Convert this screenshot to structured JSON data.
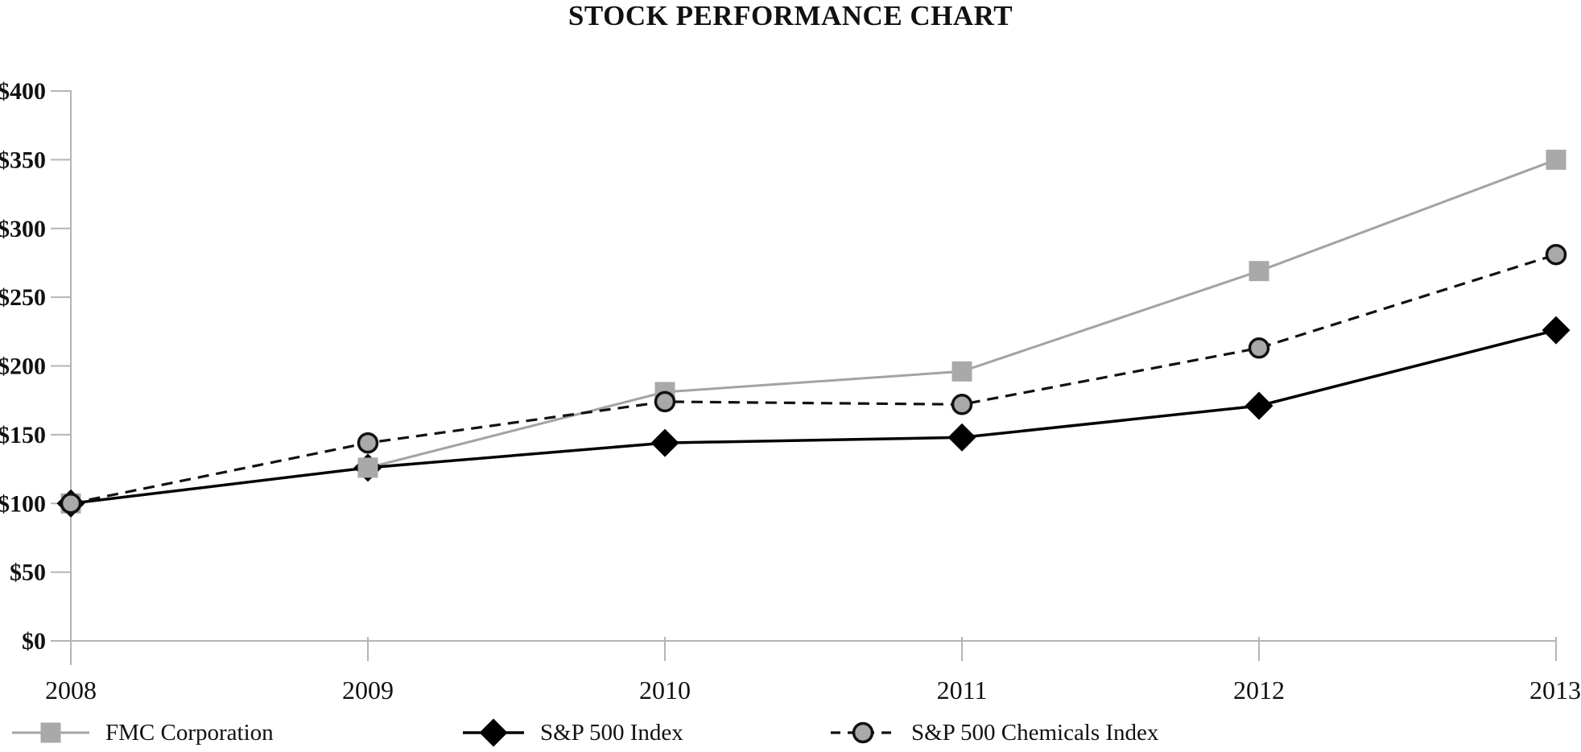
{
  "title": "STOCK PERFORMANCE CHART",
  "chart_data": {
    "type": "line",
    "title": "STOCK PERFORMANCE CHART",
    "categories": [
      "2008",
      "2009",
      "2010",
      "2011",
      "2012",
      "2013"
    ],
    "y_tick_labels": [
      "$400",
      "$350",
      "$300",
      "$250",
      "$200",
      "$150",
      "$100",
      "$50",
      "$0"
    ],
    "ylim": [
      0,
      400
    ],
    "y_tick_step": 50,
    "grid": "off",
    "legend_position": "bottom",
    "axis_color": "#b5b5b5",
    "text_color": "#111111",
    "series": [
      {
        "name": "FMC Corporation",
        "marker": "square",
        "line_style": "solid",
        "line_color": "#a3a3a3",
        "line_width": 3,
        "marker_fill": "#a9a9a9",
        "marker_stroke": "none",
        "z": 2,
        "values": [
          100,
          126,
          181,
          196,
          269,
          350
        ]
      },
      {
        "name": "S&P 500 Index",
        "marker": "diamond",
        "line_style": "solid",
        "line_color": "#000000",
        "line_width": 3.5,
        "marker_fill": "#000000",
        "marker_stroke": "none",
        "z": 1,
        "values": [
          100,
          126,
          144,
          148,
          171,
          226
        ]
      },
      {
        "name": "S&P 500 Chemicals Index",
        "marker": "circle",
        "line_style": "dashed",
        "line_color": "#111111",
        "line_width": 3.2,
        "marker_fill": "#a9a9a9",
        "marker_stroke": "#111111",
        "z": 3,
        "values": [
          100,
          144,
          174,
          172,
          213,
          281
        ]
      }
    ]
  }
}
